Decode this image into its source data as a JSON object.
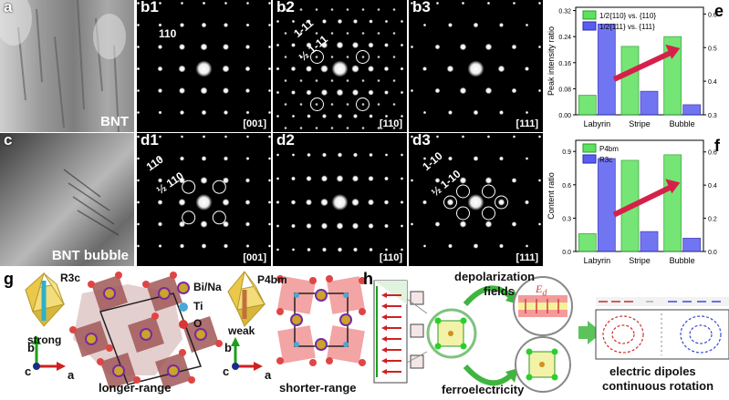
{
  "panels": {
    "a": {
      "letter": "a",
      "sample": "BNT"
    },
    "c": {
      "letter": "c",
      "sample": "BNT bubble"
    },
    "b1": {
      "letter": "b1",
      "zone": "[001]",
      "labels": [
        "110"
      ]
    },
    "b2": {
      "letter": "b2",
      "zone": "[110]",
      "labels": [
        "1-11",
        "½ 1-11"
      ]
    },
    "b3": {
      "letter": "b3",
      "zone": "[111]",
      "labels": []
    },
    "d1": {
      "letter": "d1",
      "zone": "[001]",
      "labels": [
        "110",
        "½ 110"
      ]
    },
    "d2": {
      "letter": "d2",
      "zone": "[110]",
      "labels": []
    },
    "d3": {
      "letter": "d3",
      "zone": "[111]",
      "labels": [
        "1-10",
        "½ 1-10"
      ]
    }
  },
  "chart_data": [
    {
      "panel": "e",
      "type": "bar",
      "ylabel": "Peak intensity ratio",
      "categories": [
        "Labyrin",
        "Stripe",
        "Bubble"
      ],
      "series": [
        {
          "name": "1/2{110} vs. {110}",
          "axis": "left",
          "color": "#5ee15e",
          "values": [
            0.06,
            0.21,
            0.24
          ]
        },
        {
          "name": "1/2{111} vs. {111}",
          "axis": "right",
          "color": "#5a5ef0",
          "values": [
            0.57,
            0.37,
            0.33
          ]
        }
      ],
      "ylim_left": [
        0,
        0.33
      ],
      "yticks_left": [
        "0.00",
        "0.08",
        "0.16",
        "0.24",
        "0.32"
      ],
      "ylim_right": [
        0.3,
        0.62
      ],
      "yticks_right": [
        "0.3",
        "0.4",
        "0.5",
        "0.6"
      ]
    },
    {
      "panel": "f",
      "type": "bar",
      "ylabel": "Content ratio",
      "categories": [
        "Labyrin",
        "Stripe",
        "Bubble"
      ],
      "series": [
        {
          "name": "P4bm",
          "axis": "left",
          "color": "#5ee15e",
          "values": [
            0.16,
            0.82,
            0.87
          ]
        },
        {
          "name": "R3c",
          "axis": "right",
          "color": "#5a5ef0",
          "values": [
            0.56,
            0.12,
            0.08
          ]
        }
      ],
      "ylim_left": [
        0,
        1.0
      ],
      "yticks_left": [
        "0.0",
        "0.3",
        "0.6",
        "0.9"
      ],
      "ylim_right": [
        0,
        0.67
      ],
      "yticks_right": [
        "0.0",
        "0.2",
        "0.4",
        "0.6"
      ]
    }
  ],
  "g": {
    "letter": "g",
    "r3c": "R3c",
    "strong": "strong",
    "legend": [
      "Bi/Na",
      "Ti",
      "O"
    ],
    "axes_left": {
      "b": "b",
      "c": "c",
      "a": "a"
    },
    "longer": "longer-range",
    "p4bm": "P4bm",
    "weak": "weak",
    "axes_right": {
      "b": "b",
      "c": "c",
      "a": "a"
    },
    "shorter": "shorter-range",
    "colors": {
      "bi": "#c9a52a",
      "ti": "#4aa8d8",
      "o": "#d93535",
      "tilt": "#b05a5a",
      "p4bm": "#f08a8a"
    }
  },
  "h": {
    "letter": "h",
    "depol": "depolarization",
    "fields": "fields",
    "ed": "E",
    "ed_sub": "d",
    "ferro": "ferroelectricity",
    "caption1": "electric dipoles",
    "caption2": "continuous rotation"
  }
}
